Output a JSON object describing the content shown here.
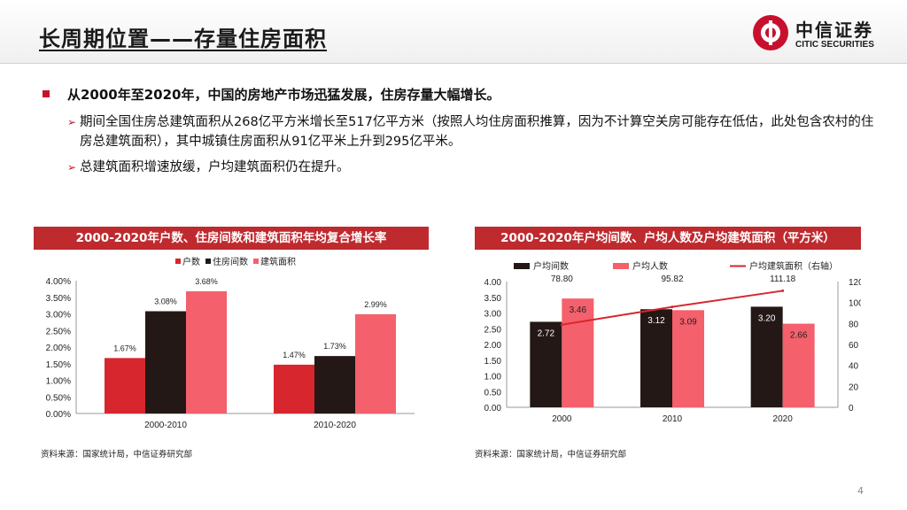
{
  "title": "长周期位置——存量住房面积",
  "logo": {
    "cn": "中信证券",
    "en": "CITIC SECURITIES"
  },
  "bullet": "从2000年至2020年，中国的房地产市场迅猛发展，住房存量大幅增长。",
  "subs": [
    "期间全国住房总建筑面积从268亿平方米增长至517亿平方米（按照人均住房面积推算，因为不计算空关房可能存在低估，此处包含农村的住房总建筑面积），其中城镇住房面积从91亿平米上升到295亿平米。",
    "总建筑面积增速放缓，户均建筑面积仍在提升。"
  ],
  "left_panel_title": "2000-2020年户数、住房间数和建筑面积年均复合增长率",
  "right_panel_title": "2000-2020年户均间数、户均人数及户均建筑面积（平方米）",
  "source_left": "资料来源：国家统计局，中信证券研究部",
  "source_right": "资料来源：国家统计局，中信证券研究部",
  "page_number": "4",
  "colors": {
    "red": "#d7262d",
    "black": "#231815",
    "pink": "#f4606c",
    "panel": "#bf2a2f"
  },
  "chart_data": [
    {
      "type": "bar",
      "categories": [
        "2000-2010",
        "2010-2020"
      ],
      "series": [
        {
          "name": "户数",
          "values": [
            1.67,
            1.47
          ],
          "labels": [
            "1.67%",
            "1.47%"
          ]
        },
        {
          "name": "住房间数",
          "values": [
            3.08,
            1.73
          ],
          "labels": [
            "3.08%",
            "1.73%"
          ]
        },
        {
          "name": "建筑面积",
          "values": [
            3.68,
            2.99
          ],
          "labels": [
            "3.68%",
            "2.99%"
          ]
        }
      ],
      "ylim": [
        0,
        4
      ],
      "yticks": [
        "0.00%",
        "0.50%",
        "1.00%",
        "1.50%",
        "2.00%",
        "2.50%",
        "3.00%",
        "3.50%",
        "4.00%"
      ],
      "legend": "top"
    },
    {
      "type": "bar",
      "categories": [
        "2000",
        "2010",
        "2020"
      ],
      "series": [
        {
          "name": "户均间数",
          "values": [
            2.72,
            3.12,
            3.2
          ],
          "labels": [
            "2.72",
            "3.12",
            "3.20"
          ],
          "axis": "left"
        },
        {
          "name": "户均人数",
          "values": [
            3.46,
            3.09,
            2.66
          ],
          "labels": [
            "3.46",
            "3.09",
            "2.66"
          ],
          "axis": "left"
        },
        {
          "name": "户均建筑面积（右轴）",
          "values": [
            78.8,
            95.82,
            111.18
          ],
          "labels": [
            "78.80",
            "95.82",
            "111.18"
          ],
          "axis": "right",
          "mark": "line"
        }
      ],
      "ylim": [
        0,
        4
      ],
      "y2lim": [
        0,
        120
      ],
      "yticks": [
        "0.00",
        "0.50",
        "1.00",
        "1.50",
        "2.00",
        "2.50",
        "3.00",
        "3.50",
        "4.00"
      ],
      "y2ticks": [
        "0",
        "20",
        "40",
        "60",
        "80",
        "100",
        "120"
      ],
      "legend": "top"
    }
  ]
}
